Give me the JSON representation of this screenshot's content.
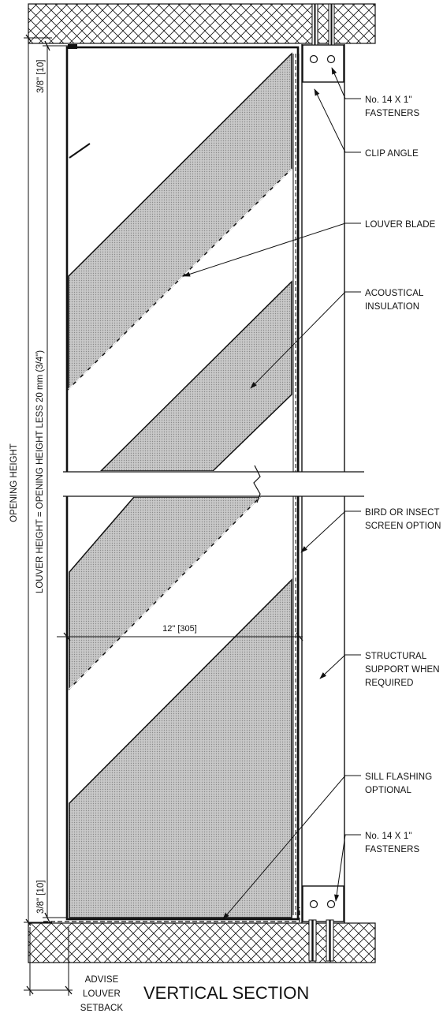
{
  "title": "VERTICAL SECTION",
  "dimensions": {
    "top_gap": "3/8\" [10]",
    "bottom_gap": "3/8\" [10]",
    "opening_height": "OPENING HEIGHT",
    "louver_height": "LOUVER HEIGHT = OPENING HEIGHT LESS 20 mm (3/4\")",
    "depth": "12\" [305]",
    "setback": [
      "ADVISE",
      "LOUVER",
      "SETBACK"
    ]
  },
  "callouts": {
    "fasteners_top": [
      "No. 14 X 1\"",
      "FASTENERS"
    ],
    "clip_angle": [
      "CLIP ANGLE"
    ],
    "louver_blade": [
      "LOUVER BLADE"
    ],
    "acoustical_insulation": [
      "ACOUSTICAL",
      "INSULATION"
    ],
    "bird_screen": [
      "BIRD OR INSECT",
      "SCREEN OPTION"
    ],
    "structural_support": [
      "STRUCTURAL",
      "SUPPORT WHEN",
      "REQUIRED"
    ],
    "sill_flashing": [
      "SILL FLASHING",
      "OPTIONAL"
    ],
    "fasteners_bottom": [
      "No. 14 X 1\"",
      "FASTENERS"
    ]
  }
}
